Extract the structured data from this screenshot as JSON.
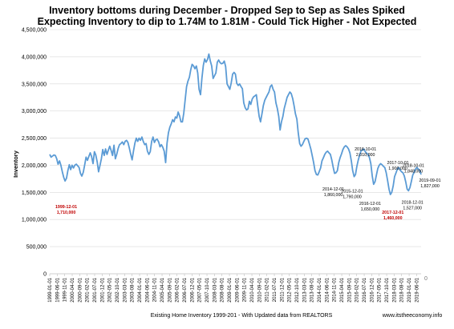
{
  "chart_data": {
    "type": "line",
    "title": "Inventory bottoms during  December - Dropped Sep to Sep as Sales Spiked",
    "subtitle": "Expecting Inventory to dip to 1.74M to 1.81M - Could Tick Higher - Not Expected",
    "xlabel": "Existing Home Inventory 1999-201 - With Updated data from REALTORS",
    "ylabel": "Inventory",
    "ylabel_right": "0",
    "source": "www.itstheeconomy.info",
    "ylim": [
      0,
      4500000
    ],
    "y_ticks": [
      "0",
      "500,000",
      "1,000,000",
      "1,500,000",
      "2,000,000",
      "2,500,000",
      "3,000,000",
      "3,500,000",
      "4,000,000",
      "4,500,000"
    ],
    "x_ticks": [
      "1999-01-01",
      "1999-06-01",
      "1999-11-01",
      "2000-04-01",
      "2000-09-01",
      "2001-02-01",
      "2001-07-01",
      "2001-12-01",
      "2002-05-01",
      "2002-10-01",
      "2003-03-01",
      "2003-08-01",
      "2004-01-01",
      "2004-06-01",
      "2004-11-01",
      "2005-04-01",
      "2005-09-01",
      "2006-02-01",
      "2006-07-01",
      "2006-12-01",
      "2007-05-01",
      "2007-10-01",
      "2008-03-01",
      "2008-08-01",
      "2009-01-01",
      "2009-06-01",
      "2009-11-01",
      "2010-04-01",
      "2010-09-01",
      "2011-02-01",
      "2011-07-01",
      "2011-12-01",
      "2012-05-01",
      "2012-10-01",
      "2013-03-01",
      "2013-08-01",
      "2014-01-01",
      "2014-06-01",
      "2014-11-01",
      "2015-04-01",
      "2015-09-01",
      "2016-02-01",
      "2016-07-01",
      "2016-12-01",
      "2017-05-01",
      "2017-10-01",
      "2018-03-01",
      "2018-08-01",
      "2019-01-01",
      "2019-06-01"
    ],
    "x_start": "1999-01",
    "x_end": "2019-09",
    "series": [
      {
        "color": "#5b9bd5",
        "values": [
          2200000,
          2150000,
          2170000,
          2190000,
          2180000,
          2120000,
          2020000,
          2080000,
          2000000,
          1880000,
          1780000,
          1710000,
          1760000,
          1900000,
          2010000,
          1920000,
          2000000,
          1950000,
          2000000,
          2020000,
          1990000,
          1960000,
          1850000,
          1800000,
          1870000,
          2000000,
          2150000,
          2090000,
          2160000,
          2230000,
          2160000,
          2030000,
          2250000,
          2190000,
          2060000,
          1880000,
          2000000,
          2120000,
          2290000,
          2180000,
          2300000,
          2200000,
          2280000,
          2350000,
          2270000,
          2180000,
          2370000,
          2120000,
          2200000,
          2310000,
          2380000,
          2400000,
          2430000,
          2380000,
          2440000,
          2460000,
          2420000,
          2320000,
          2200000,
          2100000,
          2260000,
          2410000,
          2500000,
          2440000,
          2500000,
          2460000,
          2520000,
          2440000,
          2380000,
          2400000,
          2260000,
          2200000,
          2250000,
          2440000,
          2520000,
          2420000,
          2470000,
          2480000,
          2430000,
          2340000,
          2380000,
          2330000,
          2260000,
          2050000,
          2400000,
          2600000,
          2700000,
          2760000,
          2840000,
          2800000,
          2890000,
          2870000,
          2980000,
          2910000,
          2800000,
          2800000,
          2960000,
          3200000,
          3450000,
          3550000,
          3620000,
          3760000,
          3860000,
          3830000,
          3780000,
          3830000,
          3700000,
          3400000,
          3300000,
          3600000,
          3840000,
          3960000,
          3900000,
          3950000,
          4050000,
          3920000,
          3830000,
          3600000,
          3650000,
          3700000,
          3900000,
          3940000,
          3890000,
          3870000,
          3880000,
          3920000,
          3820000,
          3500000,
          3450000,
          3400000,
          3520000,
          3680000,
          3710000,
          3680000,
          3510000,
          3470000,
          3500000,
          3450000,
          3410000,
          3150000,
          3060000,
          3020000,
          3040000,
          3180000,
          3120000,
          3220000,
          3260000,
          3280000,
          3300000,
          3100000,
          2900000,
          2800000,
          2950000,
          3100000,
          3200000,
          3250000,
          3300000,
          3350000,
          3450000,
          3480000,
          3400000,
          3350000,
          3150000,
          3050000,
          2900000,
          2650000,
          2800000,
          2900000,
          3050000,
          3150000,
          3250000,
          3300000,
          3350000,
          3320000,
          3230000,
          3100000,
          2950000,
          2850000,
          2600000,
          2400000,
          2350000,
          2380000,
          2440000,
          2490000,
          2500000,
          2480000,
          2390000,
          2300000,
          2180000,
          2050000,
          1900000,
          1830000,
          1820000,
          1880000,
          1950000,
          2080000,
          2140000,
          2200000,
          2240000,
          2260000,
          2230000,
          2200000,
          2100000,
          1970000,
          1850000,
          1860000,
          1900000,
          2050000,
          2140000,
          2210000,
          2290000,
          2340000,
          2360000,
          2340000,
          2300000,
          2230000,
          2080000,
          1900000,
          1790000,
          1830000,
          1980000,
          2100000,
          2190000,
          2270000,
          2280000,
          2300000,
          2250000,
          2220000,
          2200000,
          2140000,
          2030000,
          1800000,
          1650000,
          1700000,
          1820000,
          1940000,
          2000000,
          2030000,
          2010000,
          1980000,
          1960000,
          1860000,
          1720000,
          1560000,
          1460000,
          1500000,
          1620000,
          1790000,
          1860000,
          1930000,
          1960000,
          1910000,
          1880000,
          1860000,
          1800000,
          1690000,
          1560000,
          1530000,
          1590000,
          1700000,
          1820000,
          1870000,
          1930000,
          1960000,
          1930000,
          1900000,
          1830000
        ]
      }
    ],
    "annotations": [
      {
        "date": "1999-12-01",
        "text1": "1999-12-01",
        "text2": "1,710,000",
        "value": 1710000,
        "color": "#c00000"
      },
      {
        "date": "2014-12-01",
        "text1": "2014-12-01",
        "text2": "1,860,000",
        "value": 1860000,
        "color": "#000000"
      },
      {
        "date": "2015-12-01",
        "text1": "2015-12-01",
        "text2": "1,790,000",
        "value": 1790000,
        "color": "#000000"
      },
      {
        "date": "2016-10-01",
        "text1": "2016-10-01",
        "text2": "2,010,000",
        "value": 2010000,
        "color": "#000000"
      },
      {
        "date": "2016-12-01",
        "text1": "2016-12-01",
        "text2": "1,650,000",
        "value": 1650000,
        "color": "#000000"
      },
      {
        "date": "2017-12-01",
        "text1": "2017-12-01",
        "text2": "1,460,000",
        "value": 1460000,
        "color": "#c00000"
      },
      {
        "date": "2017-10-01",
        "text1": "2017-10-01",
        "text2": "1,900,000",
        "value": 1900000,
        "color": "#000000"
      },
      {
        "date": "2018-10-01",
        "text1": "2018-10-01",
        "text2": "1,848,000",
        "value": 1848000,
        "color": "#000000"
      },
      {
        "date": "2018-12-01",
        "text1": "2018-12-01",
        "text2": "1,527,000",
        "value": 1527000,
        "color": "#000000"
      },
      {
        "date": "2019-09-01",
        "text1": "2019-09-01",
        "text2": "1,827,000",
        "value": 1827000,
        "color": "#000000"
      }
    ],
    "grid": true,
    "legend": "none"
  }
}
